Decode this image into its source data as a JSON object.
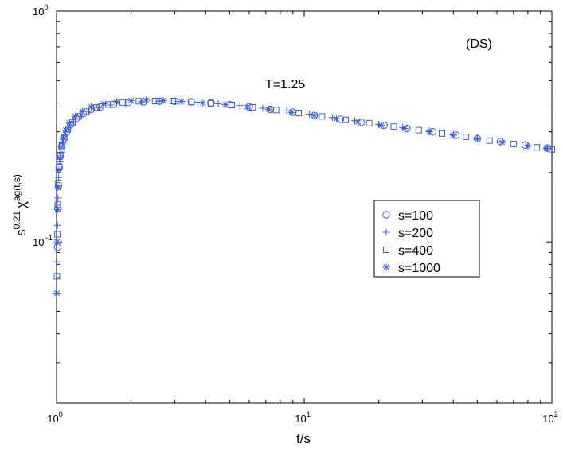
{
  "chart_data": {
    "type": "scatter",
    "xscale": "log",
    "yscale": "log",
    "xlim": [
      1,
      100
    ],
    "ylim": [
      0.02,
      1
    ],
    "grid": false,
    "legend_position": "center-right",
    "xlabel": "t/s",
    "ylabel": {
      "base": "s",
      "base_sup": "0.21",
      "symbol": "χ",
      "symbol_sup": "ag",
      "args": "(t,s)"
    },
    "annotations": [
      "(DS)",
      "T=1.25"
    ],
    "x_ticks": [
      {
        "base": "10",
        "exp": "0"
      },
      {
        "base": "10",
        "exp": "1"
      },
      {
        "base": "10",
        "exp": "2"
      }
    ],
    "y_ticks": [
      {
        "base": "10",
        "exp": "−1"
      },
      {
        "base": "10",
        "exp": "0"
      }
    ],
    "color": "#3b5bdb",
    "series": [
      {
        "name": "s=100",
        "marker": "circle",
        "points": [
          [
            1.01,
            0.095
          ],
          [
            1.013,
            0.14
          ],
          [
            1.018,
            0.175
          ],
          [
            1.025,
            0.21
          ],
          [
            1.035,
            0.235
          ],
          [
            1.05,
            0.258
          ],
          [
            1.07,
            0.28
          ],
          [
            1.1,
            0.302
          ],
          [
            1.14,
            0.322
          ],
          [
            1.2,
            0.342
          ],
          [
            1.28,
            0.36
          ],
          [
            1.38,
            0.375
          ],
          [
            1.5,
            0.385
          ],
          [
            1.7,
            0.395
          ],
          [
            1.95,
            0.402
          ],
          [
            2.25,
            0.405
          ],
          [
            2.6,
            0.407
          ],
          [
            3.0,
            0.407
          ],
          [
            3.5,
            0.405
          ],
          [
            4.2,
            0.4
          ],
          [
            5.0,
            0.393
          ],
          [
            6.0,
            0.385
          ],
          [
            7.3,
            0.375
          ],
          [
            9.0,
            0.365
          ],
          [
            11,
            0.353
          ],
          [
            14,
            0.34
          ],
          [
            17,
            0.33
          ],
          [
            21,
            0.32
          ],
          [
            26,
            0.31
          ],
          [
            33,
            0.3
          ],
          [
            41,
            0.29
          ],
          [
            50,
            0.28
          ],
          [
            62,
            0.272
          ],
          [
            78,
            0.263
          ],
          [
            96,
            0.255
          ]
        ]
      },
      {
        "name": "s=200",
        "marker": "plus",
        "points": [
          [
            1.005,
            0.082
          ],
          [
            1.009,
            0.118
          ],
          [
            1.013,
            0.155
          ],
          [
            1.02,
            0.19
          ],
          [
            1.03,
            0.222
          ],
          [
            1.04,
            0.245
          ],
          [
            1.06,
            0.268
          ],
          [
            1.085,
            0.29
          ],
          [
            1.12,
            0.312
          ],
          [
            1.17,
            0.332
          ],
          [
            1.25,
            0.35
          ],
          [
            1.35,
            0.368
          ],
          [
            1.48,
            0.382
          ],
          [
            1.65,
            0.392
          ],
          [
            1.9,
            0.4
          ],
          [
            2.2,
            0.405
          ],
          [
            2.6,
            0.407
          ],
          [
            3.1,
            0.406
          ],
          [
            3.7,
            0.403
          ],
          [
            4.5,
            0.397
          ],
          [
            5.5,
            0.39
          ],
          [
            6.8,
            0.38
          ],
          [
            8.5,
            0.37
          ],
          [
            10.5,
            0.358
          ],
          [
            13,
            0.346
          ],
          [
            16,
            0.335
          ],
          [
            20,
            0.323
          ],
          [
            25,
            0.313
          ],
          [
            32,
            0.302
          ],
          [
            40,
            0.292
          ],
          [
            50,
            0.282
          ],
          [
            63,
            0.272
          ],
          [
            80,
            0.262
          ],
          [
            96,
            0.254
          ]
        ]
      },
      {
        "name": "s=400",
        "marker": "square",
        "points": [
          [
            1.004,
            0.071
          ],
          [
            1.008,
            0.108
          ],
          [
            1.012,
            0.145
          ],
          [
            1.017,
            0.18
          ],
          [
            1.025,
            0.212
          ],
          [
            1.035,
            0.238
          ],
          [
            1.05,
            0.262
          ],
          [
            1.075,
            0.285
          ],
          [
            1.11,
            0.308
          ],
          [
            1.16,
            0.33
          ],
          [
            1.23,
            0.35
          ],
          [
            1.32,
            0.367
          ],
          [
            1.45,
            0.382
          ],
          [
            1.62,
            0.394
          ],
          [
            1.85,
            0.402
          ],
          [
            2.15,
            0.407
          ],
          [
            2.5,
            0.408
          ],
          [
            2.95,
            0.408
          ],
          [
            3.5,
            0.404
          ],
          [
            4.2,
            0.399
          ],
          [
            5.1,
            0.392
          ],
          [
            6.2,
            0.383
          ],
          [
            7.7,
            0.373
          ],
          [
            9.5,
            0.362
          ],
          [
            11.8,
            0.35
          ],
          [
            14.7,
            0.338
          ],
          [
            18.3,
            0.327
          ],
          [
            23,
            0.316
          ],
          [
            29,
            0.305
          ],
          [
            36,
            0.295
          ],
          [
            45,
            0.285
          ],
          [
            56,
            0.275
          ],
          [
            70,
            0.266
          ],
          [
            87,
            0.257
          ],
          [
            100,
            0.252
          ]
        ]
      },
      {
        "name": "s=1000",
        "marker": "asterisk",
        "points": [
          [
            1.003,
            0.06
          ],
          [
            1.006,
            0.1
          ],
          [
            1.01,
            0.138
          ],
          [
            1.015,
            0.172
          ],
          [
            1.022,
            0.205
          ],
          [
            1.032,
            0.232
          ],
          [
            1.045,
            0.258
          ],
          [
            1.065,
            0.282
          ],
          [
            1.09,
            0.305
          ],
          [
            1.13,
            0.328
          ],
          [
            1.19,
            0.35
          ],
          [
            1.27,
            0.368
          ],
          [
            1.38,
            0.385
          ],
          [
            1.55,
            0.397
          ],
          [
            1.75,
            0.405
          ],
          [
            2.0,
            0.41
          ],
          [
            2.3,
            0.411
          ],
          [
            2.7,
            0.41
          ],
          [
            3.2,
            0.406
          ],
          [
            3.9,
            0.4
          ],
          [
            4.8,
            0.393
          ],
          [
            5.9,
            0.384
          ],
          [
            7.2,
            0.375
          ],
          [
            8.9,
            0.364
          ],
          [
            11,
            0.353
          ],
          [
            13.5,
            0.342
          ],
          [
            16.5,
            0.331
          ],
          [
            20.5,
            0.32
          ],
          [
            25.5,
            0.31
          ],
          [
            32,
            0.3
          ],
          [
            40,
            0.29
          ],
          [
            50,
            0.28
          ],
          [
            63,
            0.27
          ],
          [
            80,
            0.261
          ],
          [
            95,
            0.255
          ]
        ]
      }
    ]
  }
}
